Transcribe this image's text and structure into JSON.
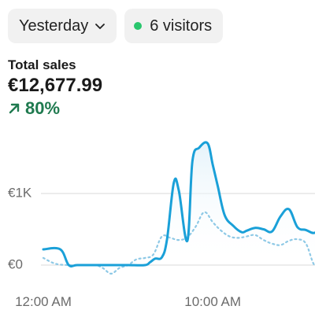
{
  "filters": {
    "date_label": "Yesterday",
    "visitors_label": "6 visitors"
  },
  "stats": {
    "label": "Total sales",
    "value": "€12,677.99",
    "change": "80%"
  },
  "colors": {
    "primary_line": "#1aa0d8",
    "comparison_line": "#8ec9e6",
    "live_dot": "#29c66d",
    "positive": "#1f7a4f"
  },
  "icons": {
    "date_dropdown": "chevron-down-icon",
    "live_indicator": "status-dot-icon",
    "trend": "arrow-up-right-icon"
  },
  "chart_data": {
    "type": "line",
    "y_ticks": [
      {
        "value": 0,
        "label": "€0"
      },
      {
        "value": 1000,
        "label": "€1K"
      }
    ],
    "x_ticks": [
      {
        "value": 0,
        "label": "12:00 AM"
      },
      {
        "value": 10,
        "label": "10:00 AM"
      }
    ],
    "xlim": [
      0,
      16.5
    ],
    "ylim": [
      -130,
      1650
    ],
    "grid": true,
    "series": [
      {
        "role": "current",
        "x": [
          0,
          1,
          1.5,
          2,
          3,
          4,
          5,
          6,
          6.3,
          6.6,
          7,
          7.3,
          7.7,
          8,
          8.5,
          8.8,
          9.2,
          9.7,
          10,
          10.3,
          10.7,
          11.2,
          11.7,
          12,
          12.5,
          13,
          13.5,
          14,
          14.5,
          15,
          15.5,
          16,
          16.5
        ],
        "values": [
          220,
          220,
          0,
          0,
          0,
          0,
          0,
          0,
          40,
          90,
          110,
          360,
          1150,
          1040,
          340,
          1450,
          1640,
          1700,
          1400,
          1100,
          700,
          550,
          460,
          480,
          520,
          500,
          470,
          680,
          780,
          530,
          490,
          450,
          550
        ]
      },
      {
        "role": "comparison",
        "x": [
          0,
          0.7,
          1.5,
          2,
          3,
          3.5,
          4,
          4.5,
          5,
          5.5,
          6,
          6.5,
          7,
          7.5,
          8,
          8.5,
          9,
          9.5,
          10,
          10.5,
          11,
          11.5,
          12,
          12.5,
          13,
          13.5,
          14,
          14.5,
          15,
          15.5,
          16,
          16.5
        ],
        "values": [
          100,
          20,
          0,
          0,
          0,
          -40,
          -120,
          -40,
          0,
          80,
          100,
          150,
          400,
          380,
          350,
          390,
          540,
          740,
          600,
          480,
          400,
          380,
          400,
          420,
          350,
          300,
          280,
          340,
          360,
          300,
          0,
          0
        ]
      }
    ]
  }
}
